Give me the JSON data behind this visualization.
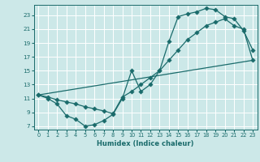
{
  "xlabel": "Humidex (Indice chaleur)",
  "bg_color": "#cce8e8",
  "grid_color": "#ffffff",
  "line_color": "#1a6b6b",
  "xlim": [
    -0.5,
    23.5
  ],
  "ylim": [
    6.5,
    24.5
  ],
  "xticks": [
    0,
    1,
    2,
    3,
    4,
    5,
    6,
    7,
    8,
    9,
    10,
    11,
    12,
    13,
    14,
    15,
    16,
    17,
    18,
    19,
    20,
    21,
    22,
    23
  ],
  "yticks": [
    7,
    9,
    11,
    13,
    15,
    17,
    19,
    21,
    23
  ],
  "curve1_x": [
    0,
    1,
    2,
    3,
    4,
    5,
    6,
    7,
    8,
    9,
    10,
    11,
    12,
    13,
    14,
    15,
    16,
    17,
    18,
    19,
    20,
    21,
    22,
    23
  ],
  "curve1_y": [
    11.5,
    11.0,
    10.2,
    8.5,
    8.0,
    7.0,
    7.2,
    7.8,
    8.7,
    11.0,
    15.0,
    12.0,
    13.0,
    15.0,
    19.2,
    22.8,
    23.2,
    23.5,
    24.0,
    23.8,
    22.8,
    22.5,
    20.8,
    18.0
  ],
  "curve2_x": [
    0,
    1,
    2,
    3,
    4,
    5,
    6,
    7,
    8,
    9,
    10,
    11,
    12,
    13,
    14,
    15,
    16,
    17,
    18,
    19,
    20,
    21,
    22,
    23
  ],
  "curve2_y": [
    11.5,
    11.2,
    10.8,
    10.5,
    10.2,
    9.8,
    9.5,
    9.2,
    8.8,
    11.2,
    12.0,
    13.0,
    14.0,
    15.0,
    16.5,
    18.0,
    19.5,
    20.5,
    21.5,
    22.0,
    22.5,
    21.5,
    21.0,
    16.5
  ],
  "curve3_x": [
    0,
    23
  ],
  "curve3_y": [
    11.5,
    16.5
  ],
  "markersize": 2.8,
  "linewidth": 0.9
}
